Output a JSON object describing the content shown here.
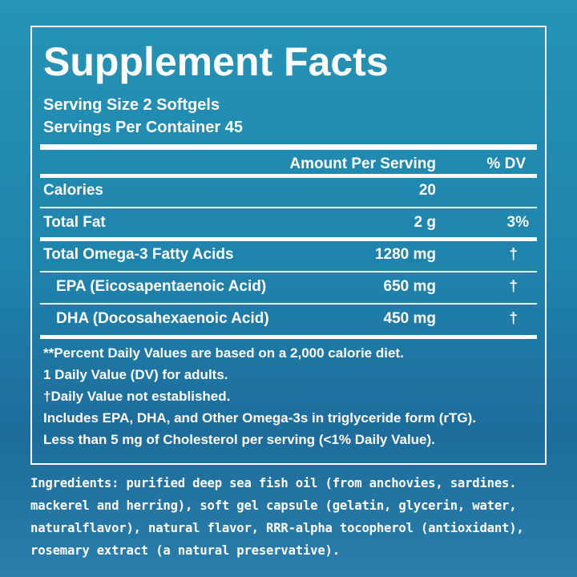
{
  "label": {
    "title": "Supplement Facts",
    "serving_size": "Serving Size 2 Softgels",
    "servings_per_container": "Servings Per Container 45",
    "header": {
      "amount": "Amount Per Serving",
      "dv": "% DV"
    },
    "rows": [
      {
        "name": "Calories",
        "amount": "20"
      },
      {
        "name": "Total Fat",
        "amount": "2 g",
        "dv": "3%"
      },
      {
        "name": "Total Omega-3 Fatty Acids",
        "amount": "1280 mg",
        "dv": "†"
      },
      {
        "name": "EPA (Eicosapentaenoic Acid)",
        "amount": "650 mg",
        "dv": "†"
      },
      {
        "name": "DHA (Docosahexaenoic Acid)",
        "amount": "450 mg",
        "dv": "†"
      }
    ],
    "footnotes": [
      "**Percent Daily Values are based on a 2,000 calorie diet.",
      "1 Daily Value (DV) for adults.",
      "†Daily Value not established.",
      "Includes EPA, DHA, and Other Omega-3s in triglyceride form (rTG).",
      "Less than 5 mg of Cholesterol per serving (<1% Daily Value)."
    ]
  },
  "ingredients": [
    "Ingredients:  purified deep sea fish oil (from anchovies, sardines.",
    "mackerel and herring), soft gel capsule (gelatin, glycerin, water,",
    "naturalflavor), natural flavor, RRR-alpha tocopherol (antioxidant),",
    "rosemary extract (a natural preservative)."
  ]
}
